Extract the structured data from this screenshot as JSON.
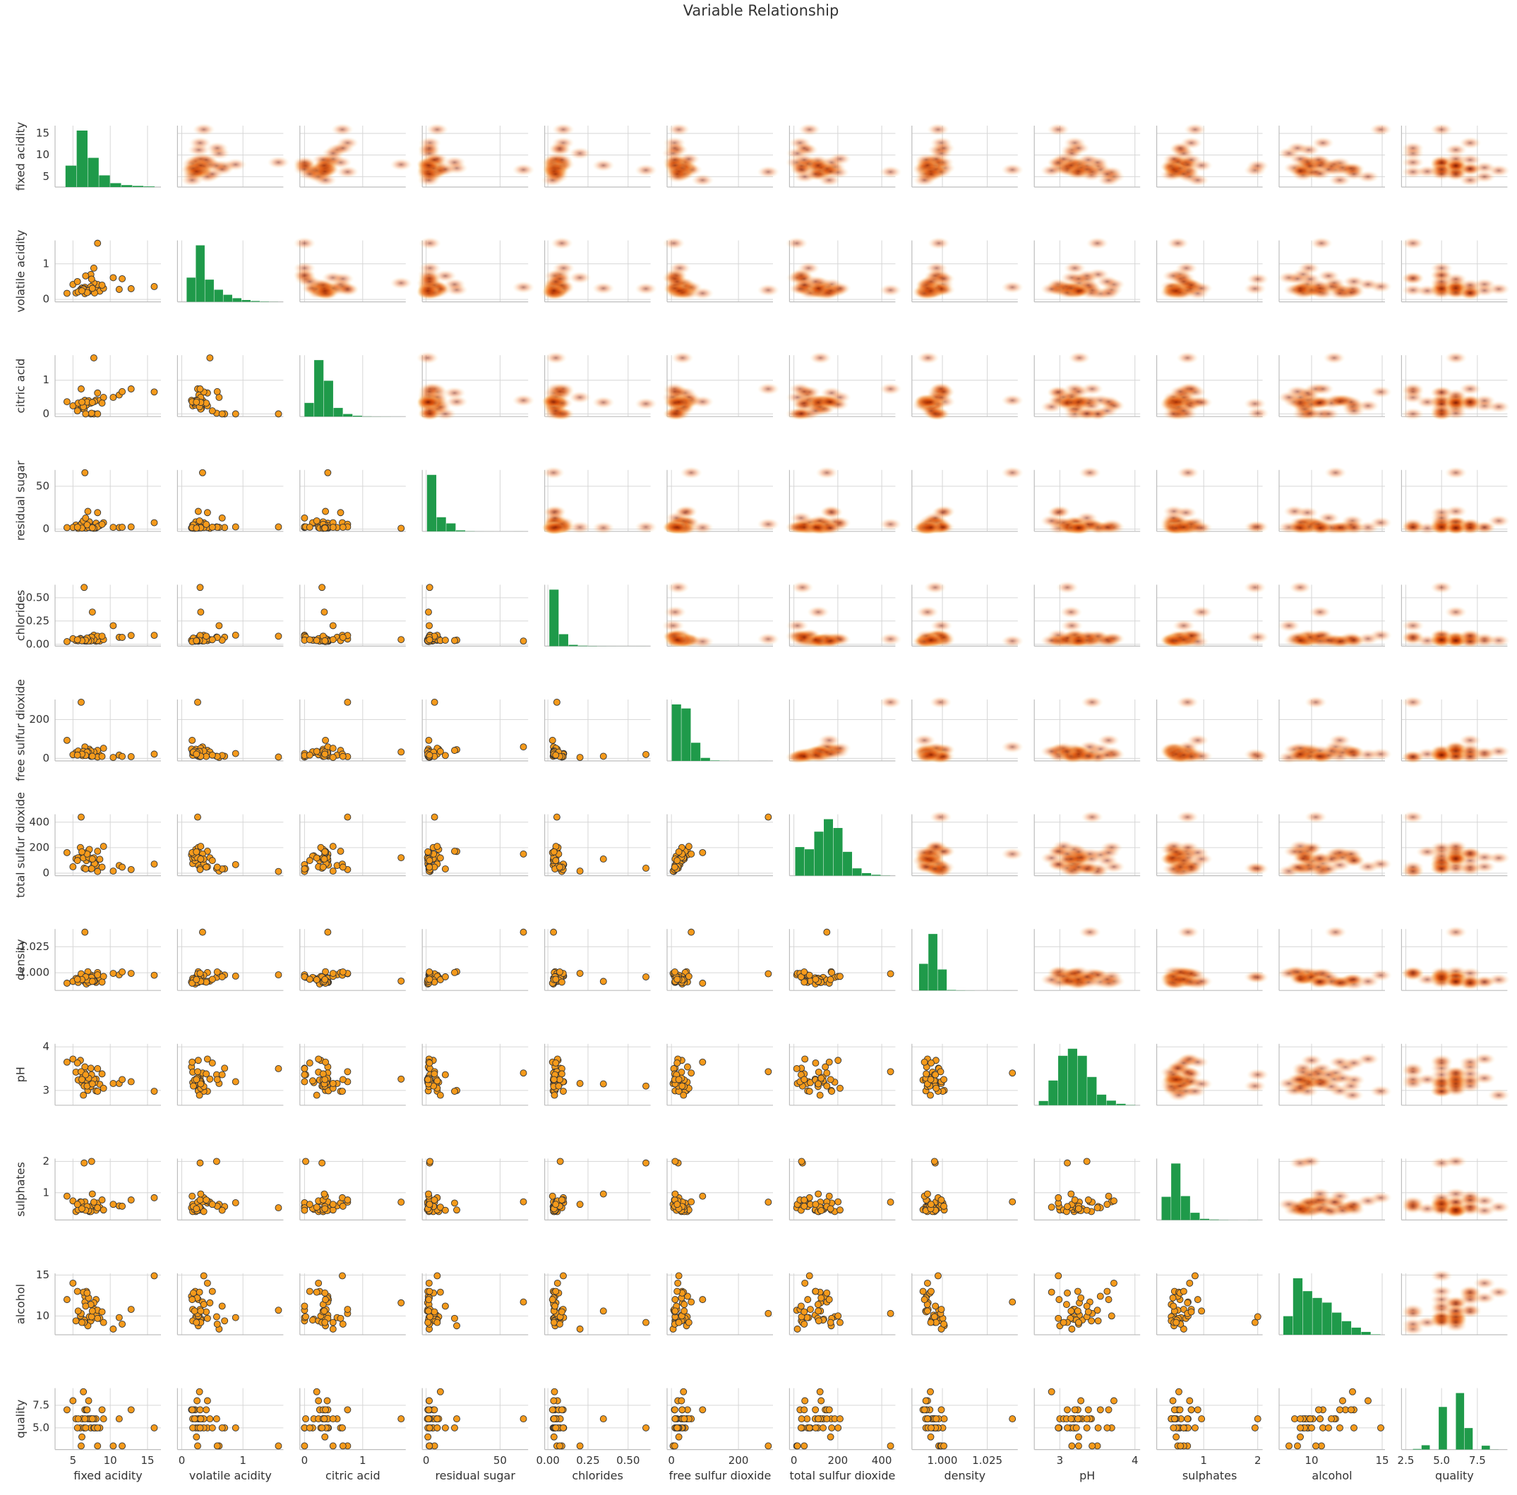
{
  "chart_data": {
    "type": "pairplot",
    "title": "Variable Relationship",
    "grid": true,
    "point_color": "#f59a1b",
    "kde_color": "#e8590c",
    "hist_color": "#1f9a4a",
    "variables": [
      {
        "name": "fixed acidity",
        "xlim": [
          2.6,
          16.8
        ],
        "ylim": [
          2.6,
          16.8
        ],
        "ticks": [
          5,
          10,
          15
        ],
        "bins": [
          4,
          5.5,
          7,
          8.5,
          10,
          11.5,
          13,
          14.5,
          16
        ],
        "counts": [
          1100,
          2900,
          1500,
          600,
          200,
          100,
          60,
          30
        ]
      },
      {
        "name": "volatile acidity",
        "xlim": [
          -0.07,
          1.66
        ],
        "ylim": [
          -0.07,
          1.66
        ],
        "ticks": [
          0,
          1
        ],
        "bins": [
          0.08,
          0.23,
          0.38,
          0.53,
          0.68,
          0.83,
          0.98,
          1.13,
          1.28,
          1.43,
          1.58
        ],
        "counts": [
          1200,
          2800,
          1100,
          600,
          350,
          180,
          90,
          40,
          15,
          5
        ]
      },
      {
        "name": "citric acid",
        "xlim": [
          -0.08,
          1.74
        ],
        "ylim": [
          -0.08,
          1.74
        ],
        "ticks": [
          0,
          1
        ],
        "bins": [
          0,
          0.166,
          0.332,
          0.498,
          0.664,
          0.83,
          0.996,
          1.162,
          1.328,
          1.494,
          1.66
        ],
        "counts": [
          630,
          2600,
          1650,
          400,
          120,
          40,
          10,
          5,
          3,
          1
        ]
      },
      {
        "name": "residual sugar",
        "xlim": [
          -2.6,
          69
        ],
        "ylim": [
          -2.6,
          69
        ],
        "ticks": [
          0,
          50
        ],
        "bins": [
          0.6,
          7.12,
          13.64,
          20.16,
          26.68,
          33.2,
          39.72,
          46.24,
          52.76,
          59.28,
          65.8
        ],
        "counts": [
          4600,
          1150,
          650,
          80,
          12,
          2,
          1,
          0,
          0,
          1
        ]
      },
      {
        "name": "chlorides",
        "xlim": [
          -0.02,
          0.64
        ],
        "ylim": [
          -0.02,
          0.64
        ],
        "ticks": [
          {
            "value": 0,
            "label": "0.00"
          },
          {
            "value": 0.25,
            "label": "0.25"
          },
          {
            "value": 0.5,
            "label": "0.50"
          }
        ],
        "bins": [
          0.009,
          0.069,
          0.129,
          0.189,
          0.249,
          0.309,
          0.369,
          0.429,
          0.489,
          0.549,
          0.611
        ],
        "counts": [
          5200,
          1100,
          120,
          40,
          20,
          8,
          4,
          2,
          1,
          2
        ]
      },
      {
        "name": "free sulfur dioxide",
        "xlim": [
          -13,
          303
        ],
        "ylim": [
          -13,
          303
        ],
        "ticks": [
          0,
          200
        ],
        "bins": [
          1,
          29.8,
          58.6,
          87.4,
          116.2,
          145,
          173.8,
          202.6,
          231.4,
          260.2,
          289
        ],
        "counts": [
          2800,
          2600,
          900,
          150,
          20,
          5,
          1,
          0,
          0,
          1
        ]
      },
      {
        "name": "total sulfur dioxide",
        "xlim": [
          -20,
          462
        ],
        "ylim": [
          -20,
          462
        ],
        "ticks": [
          0,
          200,
          400
        ],
        "bins": [
          6,
          49.4,
          92.8,
          136.2,
          179.6,
          223,
          266.4,
          309.8,
          353.2,
          396.6,
          440
        ],
        "counts": [
          780,
          720,
          1200,
          1540,
          1300,
          650,
          200,
          70,
          25,
          5
        ]
      },
      {
        "name": "density",
        "xlim": [
          0.983,
          1.042
        ],
        "ylim": [
          0.983,
          1.042
        ],
        "ticks": [
          {
            "value": 1.0,
            "label": "1.000"
          },
          {
            "value": 1.025,
            "label": "1.025"
          }
        ],
        "bins": [
          0.987,
          0.9922,
          0.9974,
          1.0026,
          1.0078,
          1.013,
          1.0182,
          1.0234,
          1.0286,
          1.0338,
          1.039
        ],
        "counts": [
          1650,
          3500,
          1300,
          30,
          10,
          4,
          0,
          0,
          0,
          1
        ]
      },
      {
        "name": "pH",
        "xlim": [
          2.66,
          4.07
        ],
        "ylim": [
          2.66,
          4.07
        ],
        "ticks": [
          3,
          4
        ],
        "bins": [
          2.72,
          2.849,
          2.978,
          3.107,
          3.236,
          3.365,
          3.494,
          3.623,
          3.752,
          3.881,
          4.01
        ],
        "counts": [
          120,
          700,
          1400,
          1600,
          1400,
          800,
          300,
          130,
          40,
          7
        ]
      },
      {
        "name": "sulphates",
        "xlim": [
          0.13,
          2.09
        ],
        "ylim": [
          0.13,
          2.09
        ],
        "ticks": [
          1,
          2
        ],
        "bins": [
          0.22,
          0.398,
          0.576,
          0.754,
          0.932,
          1.11,
          1.288,
          1.466,
          1.644,
          1.822,
          2.0
        ],
        "counts": [
          1600,
          3900,
          1650,
          500,
          80,
          30,
          10,
          3,
          0,
          4
        ]
      },
      {
        "name": "alcohol",
        "xlim": [
          7.7,
          15.2
        ],
        "ylim": [
          7.7,
          15.2
        ],
        "ticks": [
          10,
          15
        ],
        "bins": [
          8,
          8.69,
          9.38,
          10.07,
          10.76,
          11.45,
          12.14,
          12.83,
          13.52,
          14.21,
          14.9
        ],
        "counts": [
          520,
          1580,
          1220,
          1030,
          900,
          620,
          380,
          200,
          80,
          10
        ]
      },
      {
        "name": "quality",
        "xlim": [
          2.2,
          9.6
        ],
        "ylim": [
          2.6,
          9.4
        ],
        "ticks": [
          {
            "value": 2.5,
            "label": "2.5"
          },
          {
            "value": 5,
            "label": "5.0"
          },
          {
            "value": 7.5,
            "label": "7.5"
          }
        ],
        "bins": [
          3,
          3.6,
          4.2,
          4.8,
          5.4,
          6.0,
          6.6,
          7.2,
          7.8,
          8.4,
          9.0
        ],
        "counts": [
          30,
          216,
          0,
          2138,
          0,
          2836,
          1079,
          0,
          193,
          5
        ]
      }
    ],
    "rows": [
      [
        7.4,
        0.7,
        0.0,
        1.9,
        0.076,
        11,
        34,
        0.9978,
        3.51,
        0.56,
        9.4,
        5
      ],
      [
        7.8,
        0.88,
        0.0,
        2.6,
        0.098,
        25,
        67,
        0.9968,
        3.2,
        0.68,
        9.8,
        5
      ],
      [
        11.2,
        0.28,
        0.56,
        1.9,
        0.075,
        17,
        60,
        0.998,
        3.16,
        0.58,
        9.8,
        6
      ],
      [
        7.0,
        0.27,
        0.36,
        20.7,
        0.045,
        45,
        170,
        1.001,
        3.0,
        0.45,
        8.8,
        6
      ],
      [
        6.3,
        0.3,
        0.34,
        1.6,
        0.049,
        14,
        132,
        0.994,
        3.3,
        0.49,
        9.5,
        6
      ],
      [
        8.1,
        0.28,
        0.4,
        6.9,
        0.05,
        30,
        97,
        0.9951,
        3.26,
        0.44,
        10.1,
        6
      ],
      [
        7.2,
        0.23,
        0.32,
        8.5,
        0.058,
        47,
        186,
        0.9956,
        3.19,
        0.4,
        9.9,
        6
      ],
      [
        6.2,
        0.32,
        0.16,
        7.0,
        0.045,
        30,
        136,
        0.9949,
        3.18,
        0.47,
        9.6,
        6
      ],
      [
        8.1,
        0.27,
        0.41,
        1.45,
        0.033,
        11,
        63,
        0.9908,
        2.99,
        0.56,
        12.0,
        5
      ],
      [
        8.6,
        0.23,
        0.4,
        4.2,
        0.035,
        17,
        109,
        0.9947,
        3.14,
        0.53,
        9.7,
        5
      ],
      [
        7.9,
        0.18,
        0.37,
        1.2,
        0.04,
        16,
        75,
        0.992,
        3.18,
        0.63,
        10.8,
        5
      ],
      [
        6.6,
        0.16,
        0.4,
        1.5,
        0.044,
        48,
        143,
        0.9912,
        3.54,
        0.52,
        12.4,
        7
      ],
      [
        8.3,
        0.42,
        0.62,
        19.25,
        0.04,
        41,
        172,
        1.0002,
        2.98,
        0.67,
        9.7,
        5
      ],
      [
        6.5,
        0.31,
        0.14,
        7.5,
        0.044,
        34,
        133,
        0.9955,
        3.22,
        0.5,
        9.5,
        5
      ],
      [
        5.4,
        0.18,
        0.24,
        4.8,
        0.041,
        30,
        113,
        0.9945,
        3.42,
        0.4,
        9.4,
        6
      ],
      [
        6.0,
        0.27,
        0.28,
        4.8,
        0.063,
        31,
        201,
        0.9964,
        3.69,
        0.71,
        10.0,
        5
      ],
      [
        15.9,
        0.36,
        0.65,
        7.5,
        0.096,
        22,
        71,
        0.9976,
        2.98,
        0.84,
        14.9,
        5
      ],
      [
        6.6,
        0.34,
        0.4,
        65.8,
        0.035,
        59,
        150,
        1.039,
        3.4,
        0.71,
        11.7,
        6
      ],
      [
        8.3,
        1.58,
        0.0,
        2.6,
        0.087,
        7,
        13,
        0.998,
        3.5,
        0.52,
        10.7,
        3
      ],
      [
        7.8,
        0.46,
        1.66,
        1.0,
        0.05,
        33,
        121,
        0.992,
        3.26,
        0.7,
        11.6,
        6
      ],
      [
        6.5,
        0.3,
        0.3,
        2.4,
        0.611,
        20,
        39,
        0.996,
        3.1,
        1.95,
        9.2,
        5
      ],
      [
        6.1,
        0.26,
        0.74,
        5.7,
        0.056,
        289,
        440,
        0.999,
        3.43,
        0.7,
        10.3,
        3
      ],
      [
        7.5,
        0.57,
        0.02,
        2.6,
        0.077,
        11,
        35,
        0.9956,
        3.36,
        2.0,
        9.9,
        6
      ],
      [
        5.0,
        0.42,
        0.24,
        2.0,
        0.06,
        19,
        50,
        0.9917,
        3.72,
        0.74,
        14.0,
        8
      ],
      [
        9.1,
        0.31,
        0.49,
        7.5,
        0.05,
        52,
        210,
        0.9965,
        3.05,
        0.45,
        9.2,
        6
      ],
      [
        6.8,
        0.22,
        0.26,
        1.2,
        0.034,
        32,
        98,
        0.9892,
        3.24,
        0.46,
        13.0,
        7
      ],
      [
        7.4,
        0.36,
        0.32,
        1.9,
        0.036,
        38,
        110,
        0.9916,
        3.09,
        0.4,
        11.4,
        6
      ],
      [
        10.4,
        0.61,
        0.49,
        2.1,
        0.2,
        5,
        16,
        0.9994,
        3.16,
        0.63,
        8.4,
        3
      ],
      [
        12.8,
        0.3,
        0.74,
        2.6,
        0.095,
        9,
        28,
        0.9994,
        3.2,
        0.77,
        10.8,
        7
      ],
      [
        5.7,
        0.21,
        0.32,
        0.9,
        0.038,
        38,
        121,
        0.9907,
        3.24,
        0.46,
        10.6,
        6
      ],
      [
        6.4,
        0.29,
        0.21,
        9.65,
        0.041,
        36,
        119,
        0.9933,
        2.89,
        0.54,
        12.9,
        9
      ],
      [
        7.1,
        0.25,
        0.39,
        2.1,
        0.036,
        30,
        124,
        0.9908,
        3.28,
        0.43,
        12.2,
        8
      ],
      [
        6.9,
        0.19,
        0.35,
        5.0,
        0.067,
        32,
        150,
        0.993,
        3.1,
        0.56,
        12.8,
        7
      ],
      [
        8.9,
        0.4,
        0.32,
        5.6,
        0.087,
        10,
        47,
        0.991,
        3.38,
        0.77,
        10.5,
        7
      ],
      [
        4.2,
        0.17,
        0.36,
        1.8,
        0.029,
        93,
        161,
        0.99,
        3.65,
        0.89,
        12.0,
        7
      ],
      [
        6.7,
        0.66,
        0.0,
        13.0,
        0.044,
        15,
        33,
        0.9961,
        3.36,
        0.44,
        11.2,
        5
      ],
      [
        7.6,
        0.31,
        0.34,
        1.6,
        0.346,
        11,
        111,
        0.9917,
        3.15,
        0.96,
        10.6,
        6
      ],
      [
        11.6,
        0.58,
        0.66,
        2.2,
        0.074,
        10,
        47,
        1.0008,
        3.25,
        0.57,
        9.0,
        3
      ],
      [
        6.2,
        0.24,
        0.35,
        1.2,
        0.038,
        22,
        167,
        0.9935,
        3.25,
        0.49,
        9.2,
        4
      ],
      [
        5.6,
        0.5,
        0.09,
        2.3,
        0.049,
        17,
        99,
        0.9937,
        3.63,
        0.63,
        13.0,
        5
      ]
    ]
  }
}
